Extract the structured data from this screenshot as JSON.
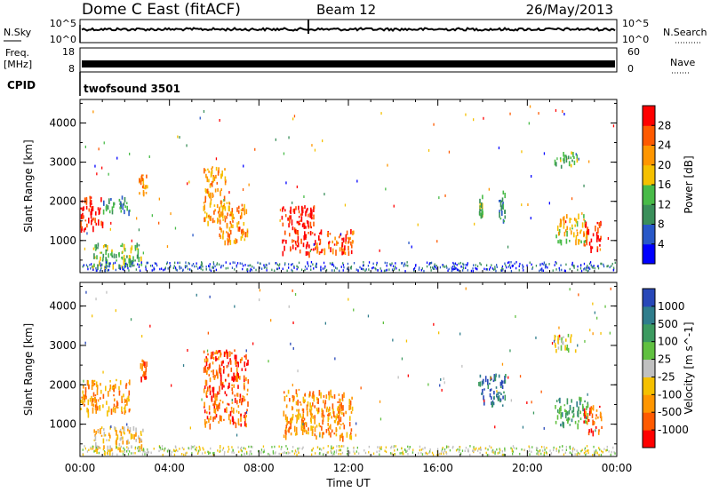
{
  "header": {
    "station": "Dome C East (fitACF)",
    "beam": "Beam 12",
    "date": "26/May/2013"
  },
  "strip_labels": {
    "nsky": "N.Sky",
    "nsky_ticks": [
      "10^5",
      "10^0"
    ],
    "nsearch": "N.Search",
    "nsearch_ticks": [
      "10^5",
      "10^0"
    ],
    "freq": "Freq.",
    "freq_unit": "[MHz]",
    "freq_ticks": [
      "18",
      "8"
    ],
    "nave": "Nave",
    "nave_ticks": [
      "60",
      "0"
    ],
    "cpid": "CPID",
    "cpid_value": "twofsound 3501"
  },
  "chart_data": [
    {
      "type": "heatmap",
      "title": "",
      "xlabel": "Time UT",
      "ylabel": "Slant Range [km]",
      "x_ticks": [
        "00:00",
        "04:00",
        "08:00",
        "12:00",
        "16:00",
        "20:00",
        "00:00"
      ],
      "xlim_hours": [
        0,
        24
      ],
      "ylim_km": [
        180,
        4600
      ],
      "y_ticks": [
        1000,
        2000,
        3000,
        4000
      ],
      "colorbar": {
        "label": "Power [dB]",
        "ticks": [
          "4",
          "8",
          "12",
          "16",
          "20",
          "24",
          "28"
        ],
        "colors": [
          "#0000ff",
          "#2858c8",
          "#3a8f5a",
          "#48bb48",
          "#f5c000",
          "#ff9600",
          "#ff5a00",
          "#ff0000"
        ]
      },
      "regions": [
        {
          "t0": 0.0,
          "t1": 1.0,
          "r0": 1300,
          "r1": 2150,
          "level": 7
        },
        {
          "t0": 1.0,
          "t1": 2.2,
          "r0": 1750,
          "r1": 2150,
          "level": 2
        },
        {
          "t0": 0.5,
          "t1": 2.8,
          "r0": 350,
          "r1": 950,
          "level": 3
        },
        {
          "t0": 2.6,
          "t1": 3.0,
          "r0": 2200,
          "r1": 2700,
          "level": 5
        },
        {
          "t0": 5.5,
          "t1": 6.5,
          "r0": 1500,
          "r1": 2900,
          "level": 5
        },
        {
          "t0": 6.2,
          "t1": 7.5,
          "r0": 1000,
          "r1": 2000,
          "level": 5
        },
        {
          "t0": 9.0,
          "t1": 10.5,
          "r0": 700,
          "r1": 1900,
          "level": 7
        },
        {
          "t0": 10.5,
          "t1": 12.2,
          "r0": 700,
          "r1": 1300,
          "level": 6
        },
        {
          "t0": 17.8,
          "t1": 18.0,
          "r0": 1700,
          "r1": 2200,
          "level": 3
        },
        {
          "t0": 18.7,
          "t1": 19.0,
          "r0": 1500,
          "r1": 2300,
          "level": 2
        },
        {
          "t0": 21.2,
          "t1": 22.7,
          "r0": 1000,
          "r1": 1700,
          "level": 4
        },
        {
          "t0": 21.2,
          "t1": 22.2,
          "r0": 2900,
          "r1": 3300,
          "level": 3
        },
        {
          "t0": 22.5,
          "t1": 23.3,
          "r0": 800,
          "r1": 1500,
          "level": 7
        }
      ]
    },
    {
      "type": "heatmap",
      "title": "",
      "xlabel": "Time UT",
      "ylabel": "Slant Range [km]",
      "x_ticks": [
        "00:00",
        "04:00",
        "08:00",
        "12:00",
        "16:00",
        "20:00",
        "00:00"
      ],
      "xlim_hours": [
        0,
        24
      ],
      "ylim_km": [
        180,
        4600
      ],
      "y_ticks": [
        1000,
        2000,
        3000,
        4000
      ],
      "colorbar": {
        "label": "Velocity [m s^-1]",
        "ticks": [
          "1000",
          "500",
          "100",
          "25",
          "-25",
          "-100",
          "-500",
          "-1000"
        ],
        "colors": [
          "#2848b8",
          "#2f7d8c",
          "#3c9a60",
          "#60c040",
          "#c0c0c0",
          "#f5c000",
          "#ff9600",
          "#ff5a00",
          "#ff0000"
        ]
      },
      "regions": [
        {
          "t0": 0.0,
          "t1": 2.2,
          "r0": 1300,
          "r1": 2150,
          "level": 6
        },
        {
          "t0": 0.5,
          "t1": 2.8,
          "r0": 350,
          "r1": 950,
          "level": 5
        },
        {
          "t0": 2.6,
          "t1": 3.0,
          "r0": 2200,
          "r1": 2700,
          "level": 7
        },
        {
          "t0": 5.5,
          "t1": 7.5,
          "r0": 1000,
          "r1": 2900,
          "level": 7
        },
        {
          "t0": 9.0,
          "t1": 12.2,
          "r0": 700,
          "r1": 1900,
          "level": 6
        },
        {
          "t0": 17.8,
          "t1": 19.0,
          "r0": 1500,
          "r1": 2300,
          "level": 1
        },
        {
          "t0": 21.2,
          "t1": 22.7,
          "r0": 1000,
          "r1": 1700,
          "level": 2
        },
        {
          "t0": 21.2,
          "t1": 22.2,
          "r0": 2900,
          "r1": 3300,
          "level": 4
        },
        {
          "t0": 22.5,
          "t1": 23.3,
          "r0": 800,
          "r1": 1500,
          "level": 7
        }
      ]
    }
  ]
}
